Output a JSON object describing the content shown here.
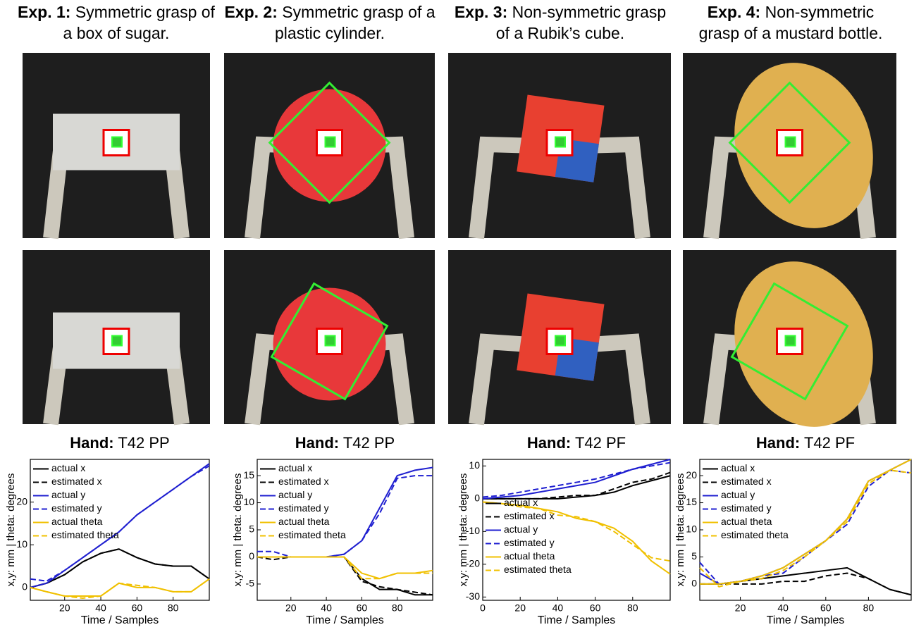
{
  "columns": [
    {
      "label": "Exp. 1:",
      "caption": "Symmetric grasp of a box of sugar."
    },
    {
      "label": "Exp. 2:",
      "caption": "Symmetric grasp of a plastic cylinder."
    },
    {
      "label": "Exp. 3:",
      "caption": "Non-symmetric grasp of a Rubik’s cube."
    },
    {
      "label": "Exp. 4:",
      "caption": "Non-symmetric grasp of a mustard bottle."
    }
  ],
  "chart_data": [
    {
      "type": "line",
      "title_prefix": "Hand:",
      "title": "T42 PP",
      "xlabel": "Time / Samples",
      "ylabel": "x,y: mm | theta: degrees",
      "x": [
        1,
        10,
        20,
        30,
        40,
        50,
        60,
        70,
        80,
        90,
        100
      ],
      "xlim": [
        1,
        100
      ],
      "xticks": [
        20,
        40,
        60,
        80
      ],
      "ylim": [
        -3,
        30
      ],
      "yticks": [
        0,
        10,
        20
      ],
      "legend": "upper left",
      "series": [
        {
          "name": "actual x",
          "color": "#000000",
          "style": "solid",
          "values": [
            0,
            1,
            3,
            6,
            8,
            9,
            7,
            5.5,
            5,
            5,
            2
          ]
        },
        {
          "name": "estimated x",
          "color": "#000000",
          "style": "dashed",
          "values": [
            0,
            1,
            3,
            6,
            8,
            9,
            7,
            5.5,
            5,
            5,
            2
          ]
        },
        {
          "name": "actual y",
          "color": "#1f1fd0",
          "style": "solid",
          "values": [
            0,
            1,
            4,
            7,
            10,
            13,
            17,
            20,
            23,
            26,
            29
          ]
        },
        {
          "name": "estimated y",
          "color": "#1f1fd0",
          "style": "dashed",
          "values": [
            2,
            1.5,
            4,
            7,
            10,
            13,
            17,
            20,
            23,
            26,
            28.5
          ]
        },
        {
          "name": "actual theta",
          "color": "#f0c000",
          "style": "solid",
          "values": [
            0,
            -1,
            -2,
            -2,
            -2,
            1,
            0,
            0,
            -1,
            -1,
            2
          ]
        },
        {
          "name": "estimated theta",
          "color": "#f0c000",
          "style": "dashed",
          "values": [
            0,
            -1,
            -2,
            -2.5,
            -2,
            1,
            0.5,
            0,
            -1,
            -1,
            2
          ]
        }
      ]
    },
    {
      "type": "line",
      "title_prefix": "Hand:",
      "title": "T42 PP",
      "xlabel": "Time / Samples",
      "ylabel": "x,y: mm | theta: degrees",
      "x": [
        1,
        10,
        20,
        30,
        40,
        50,
        60,
        70,
        80,
        90,
        100
      ],
      "xlim": [
        1,
        100
      ],
      "xticks": [
        20,
        40,
        60,
        80
      ],
      "ylim": [
        -8,
        18
      ],
      "yticks": [
        -5,
        0,
        5,
        10,
        15
      ],
      "legend": "upper left",
      "series": [
        {
          "name": "actual x",
          "color": "#000000",
          "style": "solid",
          "values": [
            0,
            0,
            0,
            0,
            0,
            0,
            -4,
            -6,
            -6,
            -7,
            -7
          ]
        },
        {
          "name": "estimated x",
          "color": "#000000",
          "style": "dashed",
          "values": [
            0,
            -0.5,
            0,
            0,
            0,
            0,
            -4.5,
            -5.5,
            -6,
            -6.5,
            -7
          ]
        },
        {
          "name": "actual y",
          "color": "#1f1fd0",
          "style": "solid",
          "values": [
            0,
            0,
            0,
            0,
            0,
            0.5,
            3,
            9,
            15,
            16,
            16.5
          ]
        },
        {
          "name": "estimated y",
          "color": "#1f1fd0",
          "style": "dashed",
          "values": [
            1,
            1,
            0,
            0,
            0,
            0.5,
            3,
            8,
            14.5,
            15,
            15
          ]
        },
        {
          "name": "actual theta",
          "color": "#f0c000",
          "style": "solid",
          "values": [
            0,
            0,
            0,
            0,
            0,
            0,
            -3,
            -4,
            -3,
            -3,
            -2.5
          ]
        },
        {
          "name": "estimated theta",
          "color": "#f0c000",
          "style": "dashed",
          "values": [
            0,
            0,
            0,
            0,
            0,
            0,
            -4,
            -4,
            -3,
            -3,
            -3
          ]
        }
      ]
    },
    {
      "type": "line",
      "title_prefix": "Hand:",
      "title": "T42 PF",
      "xlabel": "Time / Samples",
      "ylabel": "x,y: mm | theta: degrees",
      "x": [
        0,
        10,
        20,
        30,
        40,
        50,
        60,
        70,
        80,
        90,
        100
      ],
      "xlim": [
        0,
        100
      ],
      "xticks": [
        0,
        20,
        40,
        60,
        80
      ],
      "ylim": [
        -31,
        12
      ],
      "yticks": [
        -30,
        -20,
        -10,
        0,
        10
      ],
      "legend": "center left",
      "series": [
        {
          "name": "actual x",
          "color": "#000000",
          "style": "solid",
          "values": [
            0,
            0,
            0,
            0,
            0,
            0.5,
            1,
            2,
            4,
            5.5,
            7
          ]
        },
        {
          "name": "estimated x",
          "color": "#000000",
          "style": "dashed",
          "values": [
            0,
            0,
            0,
            0,
            0.5,
            1,
            1,
            3,
            5,
            6,
            8
          ]
        },
        {
          "name": "actual y",
          "color": "#1f1fd0",
          "style": "solid",
          "values": [
            0,
            0.5,
            1,
            2,
            3,
            4,
            5,
            7,
            9,
            10.5,
            12
          ]
        },
        {
          "name": "estimated y",
          "color": "#1f1fd0",
          "style": "dashed",
          "values": [
            0.5,
            1,
            2,
            3,
            4,
            5,
            6,
            7.5,
            9,
            10,
            11
          ]
        },
        {
          "name": "actual theta",
          "color": "#f0c000",
          "style": "solid",
          "values": [
            -1,
            -1.5,
            -2,
            -3,
            -4,
            -6,
            -7,
            -9,
            -13,
            -19,
            -23
          ]
        },
        {
          "name": "estimated theta",
          "color": "#f0c000",
          "style": "dashed",
          "values": [
            -1,
            -1.5,
            -2.5,
            -3,
            -5,
            -5.5,
            -7,
            -10,
            -14,
            -18,
            -19
          ]
        }
      ]
    },
    {
      "type": "line",
      "title_prefix": "Hand:",
      "title": "T42 PF",
      "xlabel": "Time / Samples",
      "ylabel": "x,y: mm | theta: degrees",
      "x": [
        1,
        10,
        20,
        30,
        40,
        50,
        60,
        70,
        80,
        90,
        100
      ],
      "xlim": [
        1,
        100
      ],
      "xticks": [
        20,
        40,
        60,
        80
      ],
      "ylim": [
        -3,
        23
      ],
      "yticks": [
        0,
        5,
        10,
        15,
        20
      ],
      "legend": "upper left",
      "series": [
        {
          "name": "actual x",
          "color": "#000000",
          "style": "solid",
          "values": [
            0,
            0,
            0.5,
            1,
            1.5,
            2,
            2.5,
            3,
            1,
            -1,
            -2
          ]
        },
        {
          "name": "estimated x",
          "color": "#000000",
          "style": "dashed",
          "values": [
            0,
            0,
            0,
            0,
            0.5,
            0.5,
            1.5,
            2,
            1,
            -1,
            -2
          ]
        },
        {
          "name": "actual y",
          "color": "#1f1fd0",
          "style": "solid",
          "values": [
            2,
            0,
            0.5,
            1.5,
            3,
            5.5,
            8,
            12,
            19,
            21,
            23
          ]
        },
        {
          "name": "estimated y",
          "color": "#1f1fd0",
          "style": "dashed",
          "values": [
            4,
            0,
            0.5,
            1.5,
            2,
            5,
            8,
            11,
            18,
            21,
            20.5
          ]
        },
        {
          "name": "actual theta",
          "color": "#f0c000",
          "style": "solid",
          "values": [
            0,
            0,
            0.5,
            1.5,
            3,
            5.5,
            8,
            12,
            19,
            21,
            23
          ]
        },
        {
          "name": "estimated theta",
          "color": "#f0c000",
          "style": "dashed",
          "values": [
            3,
            -0.5,
            0.5,
            1,
            2.5,
            5,
            8,
            11.5,
            18.5,
            21,
            20.5
          ]
        }
      ]
    }
  ]
}
